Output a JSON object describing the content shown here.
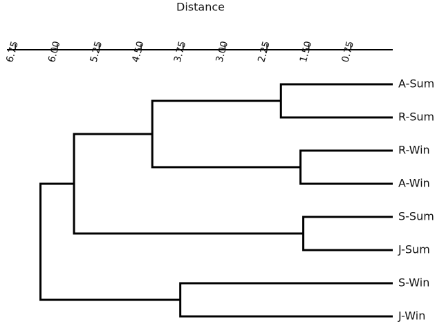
{
  "chart_data": {
    "type": "dendrogram",
    "xlabel": "Distance",
    "xlim": [
      6.9,
      0
    ],
    "xticks": [
      6.75,
      {
        "value": 6.0,
        "label": "6.00"
      },
      5.25,
      {
        "value": 4.5,
        "label": "4.50"
      },
      3.75,
      {
        "value": 3.0,
        "label": "3.00"
      },
      2.25,
      {
        "value": 1.5,
        "label": "1.50"
      },
      0.75
    ],
    "color": "#000000",
    "tree": {
      "height": 6.3,
      "children": [
        {
          "height": 5.7,
          "children": [
            {
              "height": 4.3,
              "children": [
                {
                  "height": 2.0,
                  "children": [
                    {
                      "name": "A-Sum"
                    },
                    {
                      "name": "R-Sum"
                    }
                  ]
                },
                {
                  "height": 1.65,
                  "children": [
                    {
                      "name": "R-Win"
                    },
                    {
                      "name": "A-Win"
                    }
                  ]
                }
              ]
            },
            {
              "height": 1.6,
              "children": [
                {
                  "name": "S-Sum"
                },
                {
                  "name": "J-Sum"
                }
              ]
            }
          ]
        },
        {
          "height": 3.8,
          "children": [
            {
              "name": "S-Win"
            },
            {
              "name": "J-Win"
            }
          ]
        }
      ]
    }
  }
}
